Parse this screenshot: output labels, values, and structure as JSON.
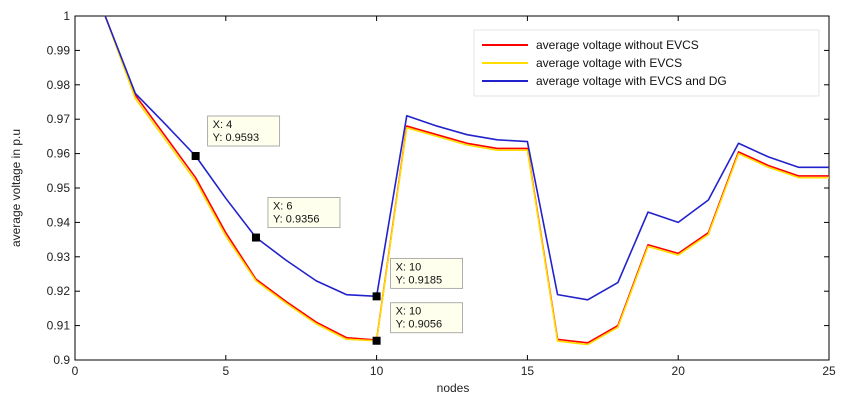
{
  "chart_data": {
    "type": "line",
    "title": "",
    "xlabel": "nodes",
    "ylabel": "average voltage in p.u",
    "xlim": [
      0,
      25
    ],
    "ylim": [
      0.9,
      1.0
    ],
    "xticks": [
      "0",
      "5",
      "10",
      "15",
      "20",
      "25"
    ],
    "yticks": [
      "0.9",
      "0.91",
      "0.92",
      "0.93",
      "0.94",
      "0.95",
      "0.96",
      "0.97",
      "0.98",
      "0.99",
      "1"
    ],
    "x": [
      1,
      2,
      3,
      4,
      5,
      6,
      7,
      8,
      9,
      10,
      11,
      12,
      13,
      14,
      15,
      16,
      17,
      18,
      19,
      20,
      21,
      22,
      23,
      24,
      25
    ],
    "series": [
      {
        "name": "average voltage without EVCS",
        "color": "#ff0000",
        "values": [
          1.0,
          0.977,
          0.965,
          0.953,
          0.937,
          0.9235,
          0.917,
          0.911,
          0.9065,
          0.9058,
          0.968,
          0.9655,
          0.963,
          0.9615,
          0.9615,
          0.906,
          0.905,
          0.91,
          0.9335,
          0.931,
          0.937,
          0.9605,
          0.9565,
          0.9535,
          0.9535
        ]
      },
      {
        "name": "average voltage with EVCS",
        "color": "#ffdd00",
        "values": [
          1.0,
          0.976,
          0.964,
          0.952,
          0.936,
          0.923,
          0.9165,
          0.9105,
          0.906,
          0.9056,
          0.9675,
          0.965,
          0.9625,
          0.961,
          0.961,
          0.9055,
          0.9045,
          0.9095,
          0.933,
          0.9305,
          0.9365,
          0.96,
          0.956,
          0.953,
          0.953
        ]
      },
      {
        "name": "average voltage with EVCS and DG",
        "color": "#2222cc",
        "values": [
          1.0,
          0.9775,
          0.9685,
          0.9593,
          0.947,
          0.9356,
          0.929,
          0.923,
          0.919,
          0.9185,
          0.971,
          0.968,
          0.9655,
          0.964,
          0.9635,
          0.919,
          0.9175,
          0.9225,
          0.943,
          0.94,
          0.9465,
          0.963,
          0.959,
          0.956,
          0.956
        ]
      }
    ],
    "legend_position": "top-right",
    "grid": false,
    "datatips": [
      {
        "x": 4,
        "y": 0.9593,
        "label_x": "X: 4",
        "label_y": "Y: 0.9593"
      },
      {
        "x": 6,
        "y": 0.9356,
        "label_x": "X: 6",
        "label_y": "Y: 0.9356"
      },
      {
        "x": 10,
        "y": 0.9185,
        "label_x": "X: 10",
        "label_y": "Y: 0.9185"
      },
      {
        "x": 10,
        "y": 0.9056,
        "label_x": "X: 10",
        "label_y": "Y: 0.9056"
      }
    ]
  }
}
